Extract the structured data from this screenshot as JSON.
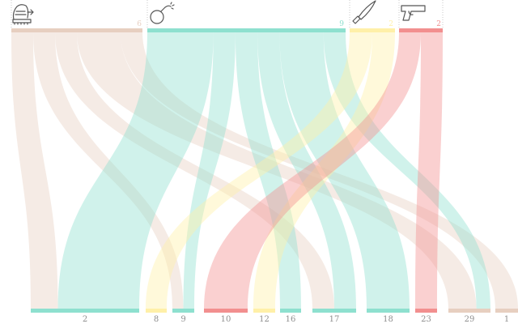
{
  "colors": {
    "beige": "#e7cfc0",
    "teal": "#8ee0cf",
    "yellow": "#fff0a8",
    "red": "#f28f8f",
    "label": "#8f8f8f"
  },
  "categories": [
    {
      "id": "c0",
      "icon": "hand-grenade-bomb-icon",
      "count": "6",
      "color": "beige"
    },
    {
      "id": "c1",
      "icon": "round-bomb-icon",
      "count": "9",
      "color": "teal"
    },
    {
      "id": "c2",
      "icon": "knife-icon",
      "count": "2",
      "color": "yellow"
    },
    {
      "id": "c3",
      "icon": "pistol-gun-icon",
      "count": "2",
      "color": "red"
    }
  ],
  "targets": [
    {
      "label": "2",
      "color": "teal"
    },
    {
      "label": "8",
      "color": "yellow"
    },
    {
      "label": "9",
      "color": "teal"
    },
    {
      "label": "10",
      "color": "red"
    },
    {
      "label": "12",
      "color": "yellow"
    },
    {
      "label": "16",
      "color": "teal"
    },
    {
      "label": "17",
      "color": "teal"
    },
    {
      "label": "18",
      "color": "teal"
    },
    {
      "label": "23",
      "color": "red"
    },
    {
      "label": "29",
      "color": "beige"
    },
    {
      "label": "1",
      "color": "beige"
    }
  ],
  "flows": [
    {
      "source": "c0",
      "target": "2",
      "weight": 1
    },
    {
      "source": "c0",
      "target": "9",
      "weight": 1
    },
    {
      "source": "c0",
      "target": "17",
      "weight": 1
    },
    {
      "source": "c0",
      "target": "29",
      "weight": 2
    },
    {
      "source": "c0",
      "target": "1",
      "weight": 1
    },
    {
      "source": "c1",
      "target": "2",
      "weight": 3
    },
    {
      "source": "c1",
      "target": "9",
      "weight": 1
    },
    {
      "source": "c1",
      "target": "16",
      "weight": 1
    },
    {
      "source": "c1",
      "target": "17",
      "weight": 1
    },
    {
      "source": "c1",
      "target": "18",
      "weight": 2
    },
    {
      "source": "c1",
      "target": "29",
      "weight": 1
    },
    {
      "source": "c2",
      "target": "8",
      "weight": 1
    },
    {
      "source": "c2",
      "target": "12",
      "weight": 1
    },
    {
      "source": "c3",
      "target": "10",
      "weight": 1
    },
    {
      "source": "c3",
      "target": "23",
      "weight": 1
    }
  ]
}
